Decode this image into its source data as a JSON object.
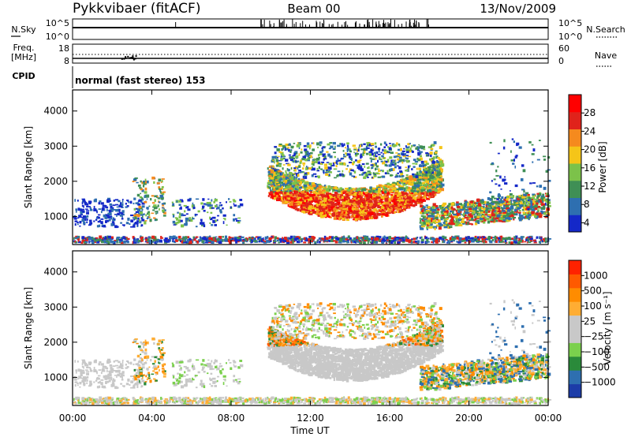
{
  "header": {
    "station": "Pykkvibaer (fitACF)",
    "beam": "Beam 00",
    "date": "13/Nov/2009"
  },
  "top_panels": {
    "nsky_label": "N.Sky",
    "nsearch_label": "N.Search",
    "nsky_ticks": [
      "10^5",
      "10^0"
    ],
    "nsearch_ticks": [
      "10^5",
      "10^0"
    ],
    "freq_label_1": "Freq.",
    "freq_label_2": "[MHz]",
    "freq_ticks": [
      "18",
      "8"
    ],
    "nave_label": "Nave",
    "nave_ticks": [
      "60",
      "0"
    ],
    "cpid_label": "CPID",
    "cpid_text": "normal (fast stereo) 153"
  },
  "chart_data": [
    {
      "type": "heatmap",
      "name": "power",
      "ylabel": "Slant Range [km]",
      "y_ticks": [
        "4000",
        "3000",
        "2000",
        "1000"
      ],
      "ylim": [
        200,
        4600
      ],
      "colorbar_label": "Power [dB]",
      "colorbar_ticks": [
        "28",
        "24",
        "20",
        "16",
        "12",
        "8",
        "4"
      ],
      "colors": [
        "#1428c8",
        "#2e6fb0",
        "#3f8f55",
        "#7cc24a",
        "#f5c518",
        "#f58a1e",
        "#e0231b",
        "#ff0000"
      ]
    },
    {
      "type": "heatmap",
      "name": "velocity",
      "ylabel": "Slant Range [km]",
      "y_ticks": [
        "4000",
        "3000",
        "2000",
        "1000"
      ],
      "ylim": [
        200,
        4600
      ],
      "colorbar_label": "Velocity [m s⁻¹]",
      "colorbar_ticks": [
        "1000",
        "500",
        "100",
        "25",
        "−25",
        "−100",
        "−500",
        "−1000"
      ],
      "colors": [
        "#ff2200",
        "#ff5a00",
        "#ff8c00",
        "#ffad33",
        "#c8c8c8",
        "#c8c8c8",
        "#7bd04d",
        "#2a8a3a",
        "#2e6fb0",
        "#1c3ca8"
      ]
    }
  ],
  "x_axis": {
    "ticks": [
      "00:00",
      "04:00",
      "08:00",
      "12:00",
      "16:00",
      "20:00",
      "00:00"
    ],
    "label": "Time UT"
  }
}
